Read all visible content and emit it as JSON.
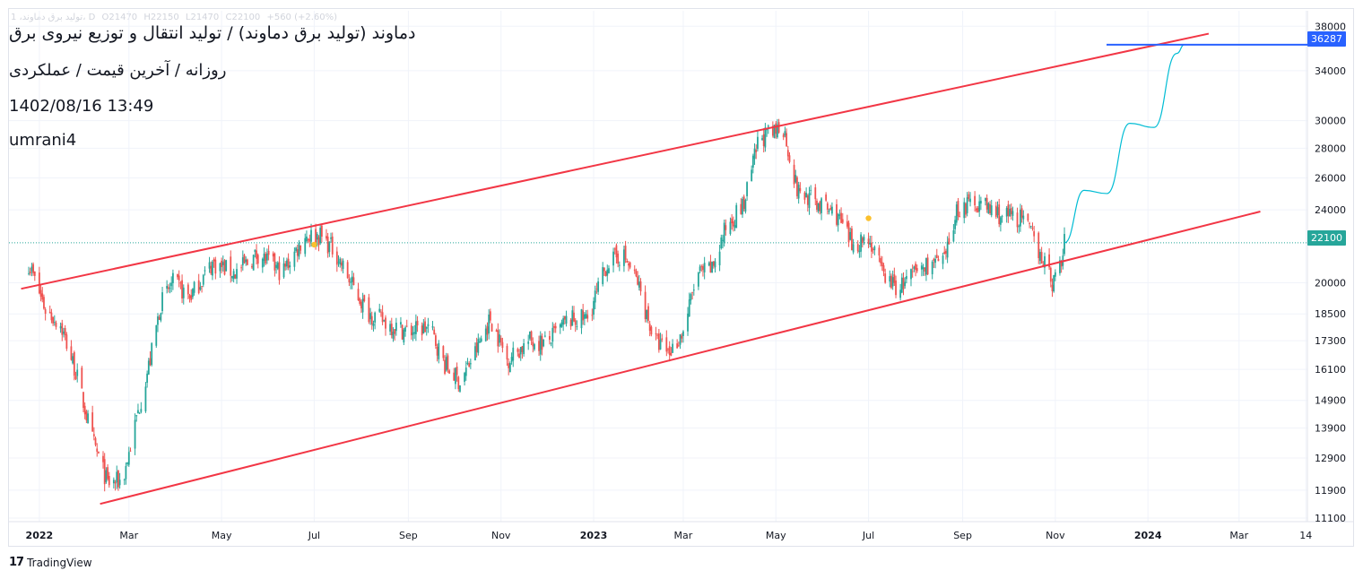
{
  "header": {
    "symbol_title": "دماوند (تولید برق دماوند) / تولید انتقال و توزیع نیروی برق",
    "subtitle": "روزانه / آخرین قیمت / عملکردی",
    "datetime": "1402/08/16 13:49",
    "author": "umrani4"
  },
  "ohlc_row": {
    "symbol": "تولید برق دماوند، 1، D",
    "open": "O21470",
    "high": "H22150",
    "low": "L21470",
    "close": "C22100",
    "change": "+560 (+2.60%)"
  },
  "brand": {
    "name": "TradingView",
    "logo_glyph": "17"
  },
  "colors": {
    "up": "#26a69a",
    "down": "#ef5350",
    "trend": "#f23645",
    "projection": "#00bcd4",
    "target": "#2962ff",
    "marker": "#fbc02d"
  },
  "badges": {
    "target": "36287",
    "last": "22100"
  },
  "chart_data": {
    "type": "candlestick",
    "y_scale": "log",
    "y_ticks": [
      38000,
      34000,
      30000,
      28000,
      26000,
      24000,
      20000,
      18500,
      17300,
      16100,
      14900,
      13900,
      12900,
      11900,
      11100
    ],
    "x_ticks": [
      "2022",
      "Mar",
      "May",
      "Jul",
      "Sep",
      "Nov",
      "2023",
      "Mar",
      "May",
      "Jul",
      "Sep",
      "Nov",
      "2024",
      "Mar",
      "14"
    ],
    "x_ticks_bold": [
      "2022",
      "2023",
      "2024"
    ],
    "last_price": 22100,
    "target_price": 36287,
    "channel_upper": [
      [
        "2021-12-20",
        19700
      ],
      [
        "2024-02-10",
        37300
      ]
    ],
    "channel_lower": [
      [
        "2022-02-10",
        11500
      ],
      [
        "2024-03-15",
        23900
      ]
    ],
    "price_path": [
      [
        "2021-12-25",
        21000
      ],
      [
        "2022-01-05",
        18700
      ],
      [
        "2022-01-15",
        18000
      ],
      [
        "2022-01-25",
        16000
      ],
      [
        "2022-02-05",
        13500
      ],
      [
        "2022-02-15",
        12100
      ],
      [
        "2022-02-25",
        12200
      ],
      [
        "2022-03-05",
        14000
      ],
      [
        "2022-03-15",
        16500
      ],
      [
        "2022-03-22",
        19000
      ],
      [
        "2022-03-30",
        20000
      ],
      [
        "2022-04-10",
        19300
      ],
      [
        "2022-04-25",
        21000
      ],
      [
        "2022-05-10",
        20500
      ],
      [
        "2022-05-25",
        21500
      ],
      [
        "2022-06-10",
        20500
      ],
      [
        "2022-06-25",
        22500
      ],
      [
        "2022-07-05",
        22500
      ],
      [
        "2022-07-15",
        21600
      ],
      [
        "2022-07-25",
        20000
      ],
      [
        "2022-08-05",
        18600
      ],
      [
        "2022-08-20",
        18000
      ],
      [
        "2022-09-01",
        17700
      ],
      [
        "2022-09-15",
        17900
      ],
      [
        "2022-09-25",
        16300
      ],
      [
        "2022-10-05",
        15600
      ],
      [
        "2022-10-15",
        16800
      ],
      [
        "2022-10-25",
        18300
      ],
      [
        "2022-11-05",
        16500
      ],
      [
        "2022-11-20",
        17300
      ],
      [
        "2022-12-01",
        17200
      ],
      [
        "2022-12-15",
        18200
      ],
      [
        "2022-12-28",
        18300
      ],
      [
        "2023-01-10",
        21000
      ],
      [
        "2023-01-20",
        21500
      ],
      [
        "2023-01-30",
        20000
      ],
      [
        "2023-02-10",
        17300
      ],
      [
        "2023-02-20",
        16800
      ],
      [
        "2023-03-01",
        17700
      ],
      [
        "2023-03-10",
        20400
      ],
      [
        "2023-03-20",
        20700
      ],
      [
        "2023-03-30",
        23200
      ],
      [
        "2023-04-10",
        24300
      ],
      [
        "2023-04-20",
        28800
      ],
      [
        "2023-04-30",
        29000
      ],
      [
        "2023-05-05",
        30000
      ],
      [
        "2023-05-15",
        25200
      ],
      [
        "2023-05-25",
        24600
      ],
      [
        "2023-06-10",
        23700
      ],
      [
        "2023-06-20",
        22000
      ],
      [
        "2023-07-01",
        22400
      ],
      [
        "2023-07-10",
        20500
      ],
      [
        "2023-07-20",
        19700
      ],
      [
        "2023-08-01",
        20500
      ],
      [
        "2023-08-10",
        21000
      ],
      [
        "2023-08-20",
        21000
      ],
      [
        "2023-08-28",
        24000
      ],
      [
        "2023-09-10",
        24500
      ],
      [
        "2023-09-25",
        23700
      ],
      [
        "2023-10-10",
        23500
      ],
      [
        "2023-10-20",
        22000
      ],
      [
        "2023-10-30",
        20000
      ],
      [
        "2023-11-05",
        21000
      ],
      [
        "2023-11-07",
        22100
      ]
    ],
    "projection_path": [
      [
        "2023-11-07",
        22100
      ],
      [
        "2023-11-20",
        25200
      ],
      [
        "2023-12-05",
        25000
      ],
      [
        "2023-12-20",
        29800
      ],
      [
        "2024-01-05",
        29500
      ],
      [
        "2024-01-20",
        35500
      ],
      [
        "2024-01-25",
        36287
      ]
    ],
    "markers": [
      [
        "2022-07-01",
        22000
      ],
      [
        "2023-07-01",
        23500
      ]
    ]
  }
}
